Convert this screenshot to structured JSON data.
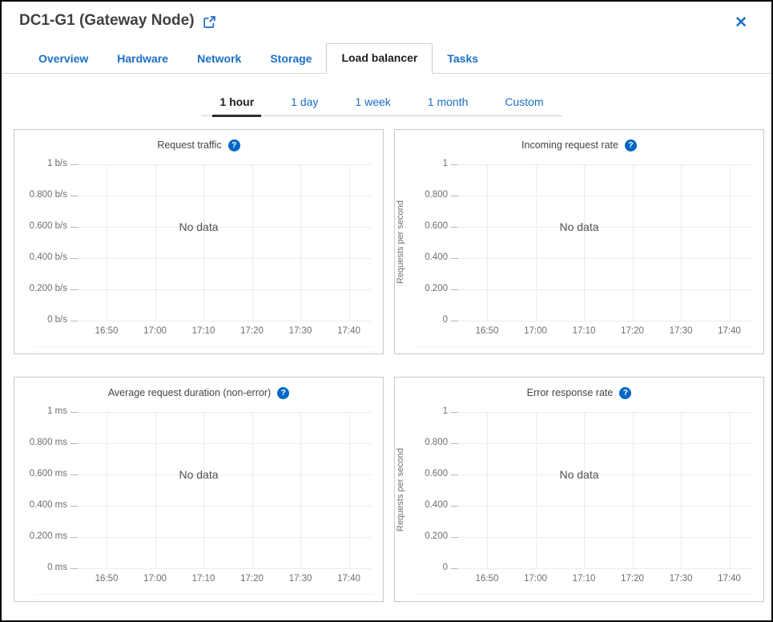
{
  "window": {
    "title": "DC1-G1 (Gateway Node)",
    "close_glyph": "✕"
  },
  "colors": {
    "accent_blue": "#1a6fc7",
    "help_icon_blue": "#0067c5",
    "active_text": "#1d1d1d",
    "title_text": "#414141",
    "axis_text": "#6d6d6d",
    "grid_line": "#ececec",
    "tick_dash": "#b5b5b5",
    "panel_border": "#c9c9c9",
    "outer_border": "#000000"
  },
  "tabs": [
    {
      "label": "Overview",
      "active": false
    },
    {
      "label": "Hardware",
      "active": false
    },
    {
      "label": "Network",
      "active": false
    },
    {
      "label": "Storage",
      "active": false
    },
    {
      "label": "Load balancer",
      "active": true
    },
    {
      "label": "Tasks",
      "active": false
    }
  ],
  "time_ranges": [
    {
      "label": "1 hour",
      "active": true
    },
    {
      "label": "1 day",
      "active": false
    },
    {
      "label": "1 week",
      "active": false
    },
    {
      "label": "1 month",
      "active": false
    },
    {
      "label": "Custom",
      "active": false
    }
  ],
  "charts": [
    {
      "type": "line",
      "title": "Request traffic",
      "help_icon": "question-mark",
      "ylabel": "",
      "y_ticks": [
        "1 b/s",
        "0.800 b/s",
        "0.600 b/s",
        "0.400 b/s",
        "0.200 b/s",
        "0 b/s"
      ],
      "ylim": [
        0,
        1
      ],
      "x_ticks": [
        "16:50",
        "17:00",
        "17:10",
        "17:20",
        "17:30",
        "17:40"
      ],
      "series": [],
      "no_data_label": "No data",
      "grid": true
    },
    {
      "type": "line",
      "title": "Incoming request rate",
      "help_icon": "question-mark",
      "ylabel": "Requests per second",
      "y_ticks": [
        "1",
        "0.800",
        "0.600",
        "0.400",
        "0.200",
        "0"
      ],
      "ylim": [
        0,
        1
      ],
      "x_ticks": [
        "16:50",
        "17:00",
        "17:10",
        "17:20",
        "17:30",
        "17:40"
      ],
      "series": [],
      "no_data_label": "No data",
      "grid": true
    },
    {
      "type": "line",
      "title": "Average request duration (non-error)",
      "help_icon": "question-mark",
      "ylabel": "",
      "y_ticks": [
        "1 ms",
        "0.800 ms",
        "0.600 ms",
        "0.400 ms",
        "0.200 ms",
        "0 ms"
      ],
      "ylim": [
        0,
        1
      ],
      "x_ticks": [
        "16:50",
        "17:00",
        "17:10",
        "17:20",
        "17:30",
        "17:40"
      ],
      "series": [],
      "no_data_label": "No data",
      "grid": true
    },
    {
      "type": "line",
      "title": "Error response rate",
      "help_icon": "question-mark",
      "ylabel": "Requests per second",
      "y_ticks": [
        "1",
        "0.800",
        "0.600",
        "0.400",
        "0.200",
        "0"
      ],
      "ylim": [
        0,
        1
      ],
      "x_ticks": [
        "16:50",
        "17:00",
        "17:10",
        "17:20",
        "17:30",
        "17:40"
      ],
      "series": [],
      "no_data_label": "No data",
      "grid": true
    }
  ]
}
